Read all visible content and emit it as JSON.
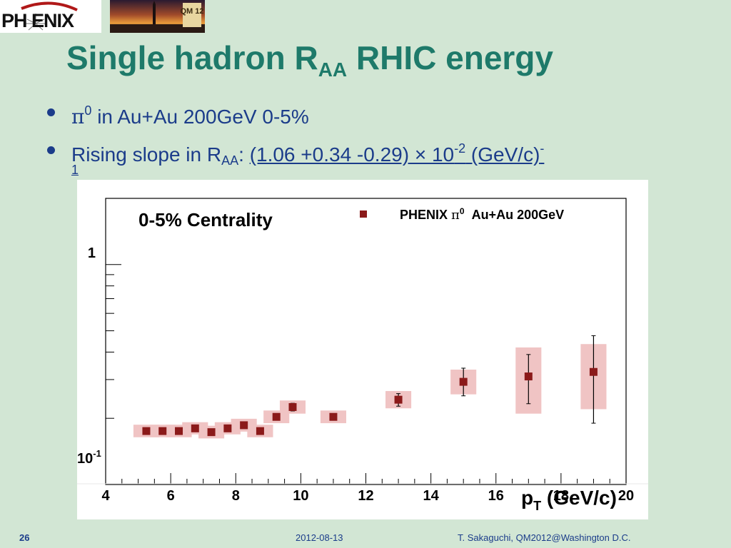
{
  "header": {
    "logo_text": "PH ENIX",
    "conf_badge": "QM 12"
  },
  "title": {
    "main": "Single hadron R",
    "sub": "AA",
    "rest": " RHIC energy"
  },
  "bullets": [
    {
      "sym": "π",
      "sup": "0",
      "text": " in Au+Au 200GeV 0-5%"
    },
    {
      "text": "Rising slope in R",
      "sub": "AA",
      "colon": ": ",
      "value": "(1.06 +0.34 -0.29)",
      "times": " × ",
      "ten": "10",
      "exp": "-2",
      "unit": " (GeV/c)",
      "unit_exp": "-",
      "unit_exp_wrap": "1"
    }
  ],
  "chart_data": {
    "type": "scatter",
    "title": "",
    "annotation": "0-5% Centrality",
    "legend": {
      "label_prefix": "PHENIX ",
      "label_sym": "π",
      "label_sup": "0",
      "label_suffix": "  Au+Au 200GeV",
      "placement": "top-right"
    },
    "xlabel": "p",
    "xlabel_sub": "T",
    "xlabel_unit": " (GeV/c)",
    "ylabel": "",
    "xlim": [
      4,
      20
    ],
    "ylim": [
      0.1,
      2.0
    ],
    "yscale": "log",
    "x_ticks": [
      "4",
      "6",
      "8",
      "10",
      "12",
      "14",
      "16",
      "18",
      "20"
    ],
    "y_tick_labels": {
      "one": "1",
      "tenth_base": "10",
      "tenth_exp": "-1"
    },
    "marker_color": "#8b1a1a",
    "sys_color": "#f0c4c4",
    "series": [
      {
        "points": [
          {
            "x": 5.25,
            "y": 0.175,
            "err_up": 0.004,
            "err_down": 0.004,
            "sys_up": 0.012,
            "sys_down": 0.011
          },
          {
            "x": 5.75,
            "y": 0.175,
            "err_up": 0.004,
            "err_down": 0.004,
            "sys_up": 0.012,
            "sys_down": 0.011
          },
          {
            "x": 6.25,
            "y": 0.175,
            "err_up": 0.004,
            "err_down": 0.004,
            "sys_up": 0.012,
            "sys_down": 0.011
          },
          {
            "x": 6.75,
            "y": 0.18,
            "err_up": 0.004,
            "err_down": 0.004,
            "sys_up": 0.012,
            "sys_down": 0.011
          },
          {
            "x": 7.25,
            "y": 0.173,
            "err_up": 0.004,
            "err_down": 0.004,
            "sys_up": 0.012,
            "sys_down": 0.011
          },
          {
            "x": 7.75,
            "y": 0.18,
            "err_up": 0.004,
            "err_down": 0.004,
            "sys_up": 0.012,
            "sys_down": 0.011
          },
          {
            "x": 8.25,
            "y": 0.186,
            "err_up": 0.005,
            "err_down": 0.005,
            "sys_up": 0.013,
            "sys_down": 0.012
          },
          {
            "x": 8.75,
            "y": 0.175,
            "err_up": 0.005,
            "err_down": 0.005,
            "sys_up": 0.012,
            "sys_down": 0.011
          },
          {
            "x": 9.25,
            "y": 0.203,
            "err_up": 0.006,
            "err_down": 0.006,
            "sys_up": 0.014,
            "sys_down": 0.013
          },
          {
            "x": 9.75,
            "y": 0.225,
            "err_up": 0.009,
            "err_down": 0.009,
            "sys_up": 0.016,
            "sys_down": 0.015
          },
          {
            "x": 11.0,
            "y": 0.203,
            "err_up": 0.006,
            "err_down": 0.006,
            "sys_up": 0.014,
            "sys_down": 0.013
          },
          {
            "x": 13.0,
            "y": 0.243,
            "err_up": 0.016,
            "err_down": 0.016,
            "sys_up": 0.023,
            "sys_down": 0.021
          },
          {
            "x": 15.0,
            "y": 0.293,
            "err_up": 0.045,
            "err_down": 0.04,
            "sys_up": 0.04,
            "sys_down": 0.036
          },
          {
            "x": 17.0,
            "y": 0.31,
            "err_up": 0.08,
            "err_down": 0.077,
            "sys_up": 0.11,
            "sys_down": 0.1
          },
          {
            "x": 19.0,
            "y": 0.325,
            "err_up": 0.15,
            "err_down": 0.135,
            "sys_up": 0.11,
            "sys_down": 0.105
          }
        ]
      }
    ]
  },
  "footer": {
    "page": "26",
    "date": "2012-08-13",
    "author": "T. Sakaguchi, QM2012@Washington D.C."
  }
}
